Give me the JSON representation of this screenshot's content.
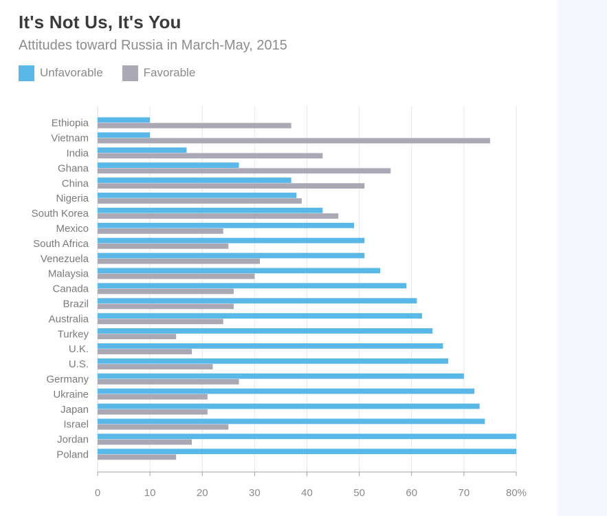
{
  "title": "It's Not Us, It's You",
  "subtitle": "Attitudes toward Russia in March-May, 2015",
  "colors": {
    "unfavorable": "#5ab8e8",
    "favorable": "#a9a8b4",
    "grid": "#e6e6e6",
    "axis": "#a0a0a0",
    "label": "#7a7a7a"
  },
  "chart_data": {
    "type": "bar",
    "orientation": "horizontal",
    "categories": [
      "Ethiopia",
      "Vietnam",
      "India",
      "Ghana",
      "China",
      "Nigeria",
      "South Korea",
      "Mexico",
      "South Africa",
      "Venezuela",
      "Malaysia",
      "Canada",
      "Brazil",
      "Australia",
      "Turkey",
      "U.K.",
      "U.S.",
      "Germany",
      "Ukraine",
      "Japan",
      "Israel",
      "Jordan",
      "Poland"
    ],
    "series": [
      {
        "name": "Unfavorable",
        "color": "#5ab8e8",
        "values": [
          10,
          10,
          17,
          27,
          37,
          38,
          43,
          49,
          51,
          51,
          54,
          59,
          61,
          62,
          64,
          66,
          67,
          70,
          72,
          73,
          74,
          80,
          80
        ]
      },
      {
        "name": "Favorable",
        "color": "#a9a8b4",
        "values": [
          37,
          75,
          43,
          56,
          51,
          39,
          46,
          24,
          25,
          31,
          30,
          26,
          26,
          24,
          15,
          18,
          22,
          27,
          21,
          21,
          25,
          18,
          15
        ]
      }
    ],
    "xlim": [
      0,
      80
    ],
    "xticks": [
      0,
      10,
      20,
      30,
      40,
      50,
      60,
      70,
      80
    ],
    "xtick_labels": [
      "0",
      "10",
      "20",
      "30",
      "40",
      "50",
      "60",
      "70",
      "80%"
    ],
    "grid": true,
    "legend_position": "top-left"
  }
}
